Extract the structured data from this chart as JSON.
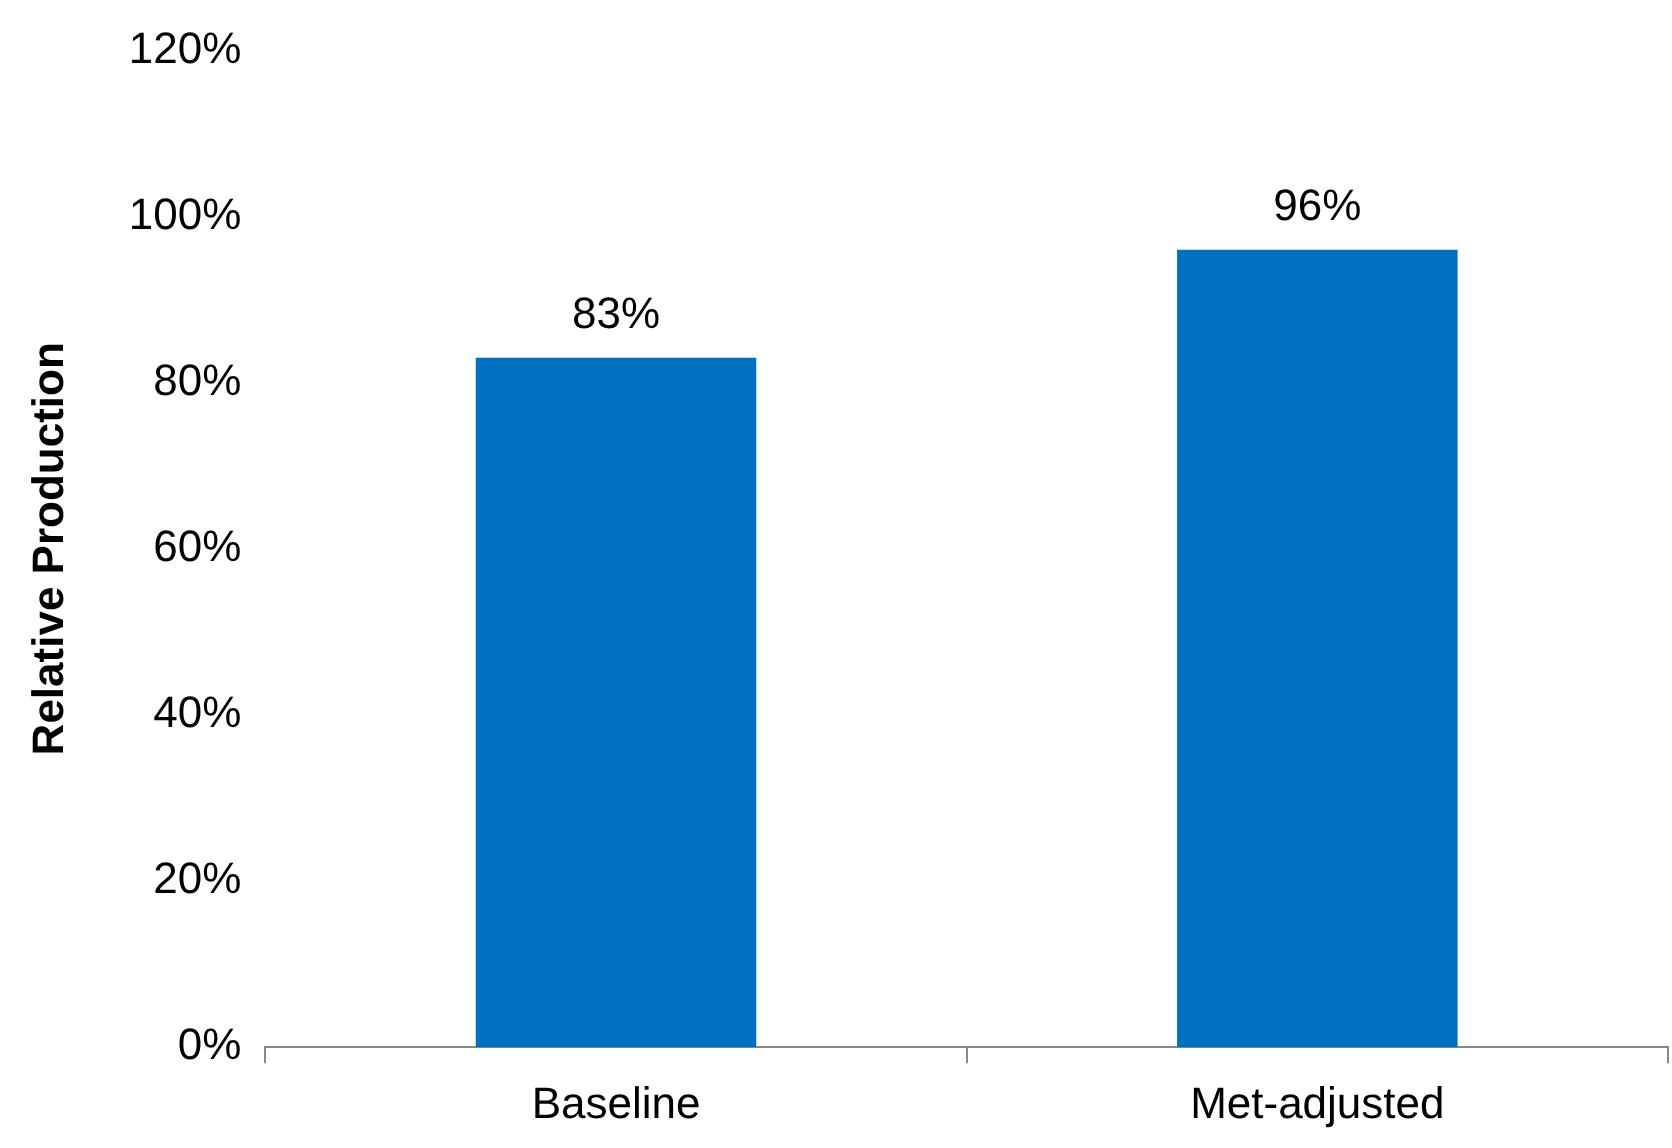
{
  "chart_data": {
    "type": "bar",
    "ylabel": "Relative Production",
    "categories": [
      "Baseline",
      "Met-adjusted"
    ],
    "values": [
      83,
      96
    ],
    "color": "#0070c0",
    "value_labels": [
      "83%",
      "96%"
    ],
    "ylim": [
      0,
      120
    ],
    "yticks": [
      {
        "value": 0,
        "label": "0%"
      },
      {
        "value": 20,
        "label": "20%"
      },
      {
        "value": 40,
        "label": "40%"
      },
      {
        "value": 60,
        "label": "60%"
      },
      {
        "value": 80,
        "label": "80%"
      },
      {
        "value": 100,
        "label": "100%"
      },
      {
        "value": 120,
        "label": "120%"
      }
    ],
    "grid": false,
    "legend": false
  }
}
